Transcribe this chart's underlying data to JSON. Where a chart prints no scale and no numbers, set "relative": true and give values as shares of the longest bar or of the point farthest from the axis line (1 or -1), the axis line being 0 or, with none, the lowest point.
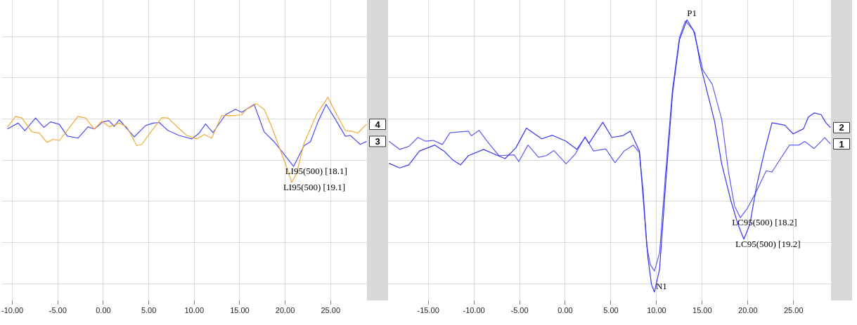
{
  "chart_data": [
    {
      "type": "line",
      "relative": true,
      "grid": true,
      "xlim": [
        -11.15,
        29.0
      ],
      "xticks": [
        {
          "value": -10,
          "label": "-10.00"
        },
        {
          "value": -5,
          "label": "-5.00"
        },
        {
          "value": 0,
          "label": "0.00"
        },
        {
          "value": 5,
          "label": "5.00"
        },
        {
          "value": 10,
          "label": "10.00"
        },
        {
          "value": 15,
          "label": "15.00"
        },
        {
          "value": 20,
          "label": "20.00"
        },
        {
          "value": 25,
          "label": "25.00"
        }
      ],
      "series": [
        {
          "name": "4",
          "color": "#f2a93b",
          "x": [
            -10.55,
            -9.65,
            -8.95,
            -7.85,
            -7.03,
            -6.21,
            -5.52,
            -4.84,
            -3.88,
            -2.78,
            -1.95,
            -0.99,
            -0.16,
            0.66,
            1.76,
            2.58,
            3.68,
            4.23,
            5.33,
            6.43,
            7.12,
            8.08,
            9.18,
            10.28,
            11.1,
            11.92,
            13.02,
            14.39,
            15.22,
            15.77,
            16.87,
            17.69,
            18.52,
            19.34,
            20.16,
            20.72,
            21.26,
            22.08,
            23.46,
            24.7,
            25.66,
            26.62,
            27.31,
            27.99,
            28.95
          ],
          "values": [
            0.852,
            0.906,
            0.898,
            0.83,
            0.824,
            0.778,
            0.793,
            0.787,
            0.842,
            0.906,
            0.898,
            0.844,
            0.882,
            0.855,
            0.873,
            0.855,
            0.762,
            0.768,
            0.836,
            0.9,
            0.898,
            0.857,
            0.812,
            0.795,
            0.817,
            0.799,
            0.91,
            0.91,
            0.914,
            0.941,
            0.968,
            0.941,
            0.855,
            0.756,
            0.657,
            0.581,
            0.626,
            0.774,
            0.916,
            1,
            0.916,
            0.836,
            0.833,
            0.824,
            0.867
          ]
        },
        {
          "name": "3",
          "color": "#4b4bf5",
          "x": [
            -10.55,
            -9.37,
            -8.62,
            -7.45,
            -6.54,
            -5.8,
            -4.84,
            -3.96,
            -2.78,
            -1.68,
            -0.99,
            -0.03,
            0.61,
            1.21,
            1.76,
            3.41,
            4.65,
            5.47,
            6.15,
            7.12,
            8.35,
            9.72,
            10.55,
            11.24,
            12.06,
            13.43,
            14.53,
            15.22,
            16.59,
            17.69,
            18.79,
            19.89,
            20.93,
            22.08,
            22.78,
            23.6,
            24.51,
            25.52,
            26.62,
            27.17,
            28.27,
            28.95
          ],
          "values": [
            0.844,
            0.873,
            0.836,
            0.898,
            0.852,
            0.879,
            0.867,
            0.809,
            0.799,
            0.855,
            0.844,
            0.879,
            0.885,
            0.857,
            0.889,
            0.805,
            0.861,
            0.873,
            0.876,
            0.836,
            0.812,
            0.795,
            0.824,
            0.869,
            0.826,
            0.914,
            0.941,
            0.926,
            0.965,
            0.83,
            0.781,
            0.719,
            0.66,
            0.762,
            0.781,
            0.879,
            0.965,
            0.892,
            0.808,
            0.812,
            0.768,
            0.783
          ]
        }
      ],
      "annotations": [
        {
          "text": "LI95(500) [18.1]",
          "x": 20.93,
          "y": 0.66
        },
        {
          "text": "LI95(500) [19.1]",
          "x": 20.72,
          "y": 0.581
        }
      ]
    },
    {
      "type": "line",
      "relative": true,
      "grid": true,
      "xlim": [
        -19.4,
        29.1
      ],
      "xticks": [
        {
          "value": -15,
          "label": "-15.00"
        },
        {
          "value": -10,
          "label": "-10.00"
        },
        {
          "value": -5,
          "label": "-5.00"
        },
        {
          "value": 0,
          "label": "0.00"
        },
        {
          "value": 5,
          "label": "5.00"
        },
        {
          "value": 10,
          "label": "10.00"
        },
        {
          "value": 15,
          "label": "15.00"
        },
        {
          "value": 20,
          "label": "20.00"
        },
        {
          "value": 25,
          "label": "25.00"
        }
      ],
      "series": [
        {
          "name": "2",
          "color": "#3535f2",
          "x": [
            -19.3,
            -18.13,
            -17.13,
            -15.96,
            -14.28,
            -13.28,
            -12.28,
            -11.45,
            -10.61,
            -8.94,
            -7.77,
            -6.59,
            -5.42,
            -4.25,
            -2.58,
            -1.41,
            0.09,
            1.26,
            2.17,
            2.6,
            4.11,
            5.11,
            6.28,
            7.12,
            8.12,
            8.54,
            9.05,
            9.44,
            9.77,
            10.33,
            10.97,
            11.75,
            12.51,
            13.33,
            14.18,
            14.82,
            15.59,
            16.36,
            17.13,
            18.15,
            18.92,
            19.56,
            20.21,
            20.98,
            21.87,
            22.64,
            24.05,
            24.95,
            26.1,
            26.62,
            27.25,
            28.02,
            28.54,
            29.05
          ],
          "values": [
            0.473,
            0.456,
            0.467,
            0.518,
            0.54,
            0.518,
            0.484,
            0.467,
            0.501,
            0.524,
            0.507,
            0.49,
            0.529,
            0.602,
            0.563,
            0.576,
            0.554,
            0.524,
            0.568,
            0.546,
            0.624,
            0.568,
            0.574,
            0.591,
            0.518,
            0.342,
            0.127,
            0.028,
            0,
            0.084,
            0.385,
            0.729,
            0.927,
            1,
            0.953,
            0.832,
            0.729,
            0.626,
            0.471,
            0.334,
            0.248,
            0.194,
            0.248,
            0.394,
            0.523,
            0.622,
            0.613,
            0.581,
            0.6,
            0.643,
            0.658,
            0.652,
            0.622,
            0.604
          ]
        },
        {
          "name": "1",
          "color": "#5a5af5",
          "x": [
            -19.31,
            -18.13,
            -17.13,
            -16.13,
            -15.29,
            -14.45,
            -13.45,
            -12.62,
            -10.61,
            -10.28,
            -9.44,
            -8.44,
            -7.26,
            -5.59,
            -5.09,
            -4.08,
            -2.92,
            -2.08,
            -1.25,
            0.09,
            1.1,
            2.17,
            3.1,
            4.44,
            5.45,
            6.45,
            7.45,
            8.12,
            8.54,
            8.92,
            9.31,
            9.77,
            10.33,
            10.97,
            11.75,
            12.51,
            13.15,
            14.05,
            15.08,
            16.1,
            17.13,
            17.9,
            18.54,
            19.18,
            19.95,
            20.85,
            22.0,
            22.64,
            23.54,
            24.56,
            25.59,
            26.23,
            27.25,
            28.41,
            29.05
          ],
          "values": [
            0.554,
            0.524,
            0.535,
            0.568,
            0.554,
            0.557,
            0.542,
            0.585,
            0.591,
            0.574,
            0.594,
            0.549,
            0.501,
            0.504,
            0.479,
            0.54,
            0.495,
            0.501,
            0.52,
            0.471,
            0.507,
            0.57,
            0.518,
            0.526,
            0.475,
            0.518,
            0.54,
            0.512,
            0.368,
            0.17,
            0.101,
            0.077,
            0.144,
            0.428,
            0.746,
            0.936,
            0.996,
            0.961,
            0.815,
            0.763,
            0.635,
            0.437,
            0.316,
            0.273,
            0.308,
            0.364,
            0.445,
            0.441,
            0.488,
            0.54,
            0.54,
            0.553,
            0.527,
            0.567,
            0.544
          ]
        }
      ],
      "annotations": [
        {
          "text": "P1",
          "x": 13.33,
          "y": 1
        },
        {
          "text": "N1",
          "x": 9.77,
          "y": 0
        },
        {
          "text": "LC95(500) [18.2]",
          "x": 19.18,
          "y": 0.273
        },
        {
          "text": "LC95(500) [19.2]",
          "x": 19.56,
          "y": 0.194
        }
      ]
    }
  ]
}
